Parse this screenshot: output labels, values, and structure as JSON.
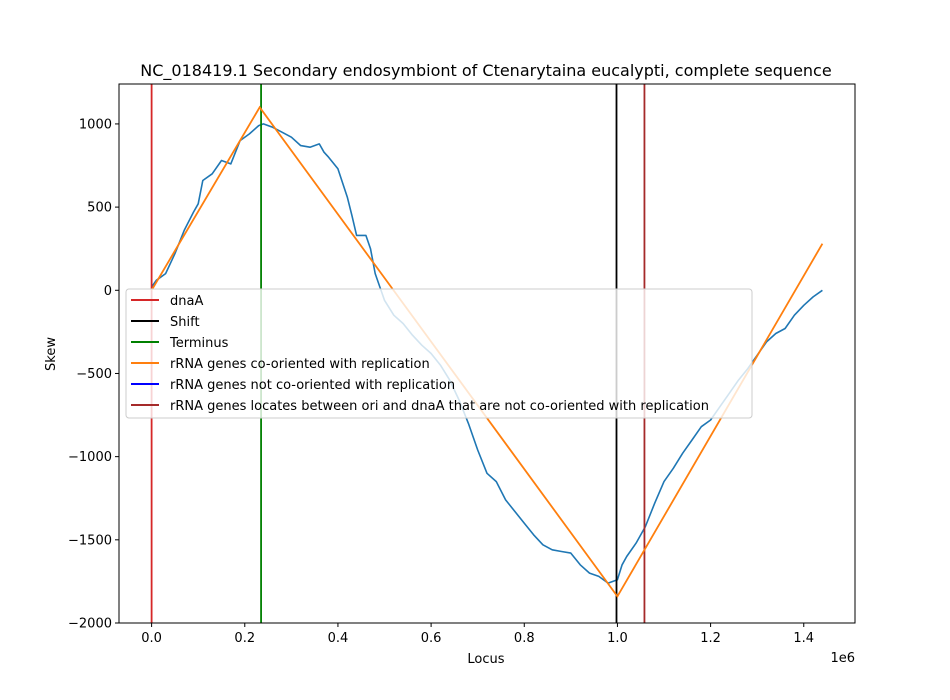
{
  "chart_data": {
    "type": "line",
    "title": "NC_018419.1 Secondary endosymbiont of Ctenarytaina eucalypti, complete sequence",
    "xlabel": "Locus",
    "ylabel": "Skew",
    "x_offset_label": "1e6",
    "xlim": [
      -0.07,
      1.51
    ],
    "ylim": [
      -2000,
      1240
    ],
    "x_ticks": [
      0.0,
      0.2,
      0.4,
      0.6,
      0.8,
      1.0,
      1.2,
      1.4
    ],
    "x_tick_labels": [
      "0.0",
      "0.2",
      "0.4",
      "0.6",
      "0.8",
      "1.0",
      "1.2",
      "1.4"
    ],
    "y_ticks": [
      1000,
      500,
      0,
      -500,
      -1000,
      -1500,
      -2000
    ],
    "y_tick_labels": [
      "1000",
      "500",
      "0",
      "−500",
      "−1000",
      "−1500",
      "−2000"
    ],
    "grid": false,
    "legend_placement": "center-left",
    "skew_series": {
      "color": "#1f77b4",
      "x": [
        0.0,
        0.01,
        0.03,
        0.05,
        0.07,
        0.09,
        0.1,
        0.11,
        0.13,
        0.15,
        0.17,
        0.19,
        0.21,
        0.23,
        0.24,
        0.26,
        0.28,
        0.3,
        0.32,
        0.34,
        0.36,
        0.37,
        0.38,
        0.4,
        0.42,
        0.43,
        0.44,
        0.46,
        0.47,
        0.48,
        0.5,
        0.52,
        0.54,
        0.56,
        0.58,
        0.6,
        0.62,
        0.64,
        0.66,
        0.68,
        0.7,
        0.72,
        0.74,
        0.76,
        0.78,
        0.8,
        0.82,
        0.84,
        0.86,
        0.88,
        0.9,
        0.92,
        0.94,
        0.96,
        0.98,
        1.0,
        1.01,
        1.02,
        1.04,
        1.06,
        1.08,
        1.1,
        1.12,
        1.14,
        1.16,
        1.18,
        1.2,
        1.22,
        1.24,
        1.26,
        1.28,
        1.3,
        1.32,
        1.34,
        1.36,
        1.38,
        1.4,
        1.42,
        1.44
      ],
      "y": [
        20,
        60,
        100,
        220,
        360,
        470,
        520,
        660,
        700,
        780,
        760,
        900,
        940,
        990,
        1000,
        980,
        950,
        920,
        870,
        860,
        880,
        830,
        800,
        730,
        560,
        450,
        330,
        330,
        250,
        100,
        -60,
        -150,
        -200,
        -270,
        -330,
        -380,
        -450,
        -540,
        -660,
        -800,
        -960,
        -1100,
        -1150,
        -1260,
        -1330,
        -1400,
        -1470,
        -1530,
        -1560,
        -1570,
        -1580,
        -1650,
        -1700,
        -1720,
        -1760,
        -1740,
        -1650,
        -1600,
        -1520,
        -1420,
        -1280,
        -1150,
        -1070,
        -980,
        -900,
        -820,
        -780,
        -700,
        -620,
        -540,
        -470,
        -390,
        -310,
        -260,
        -230,
        -150,
        -90,
        -40,
        0
      ]
    },
    "verticals": [
      {
        "name": "dnaA",
        "x": 0.0,
        "color": "#d62728"
      },
      {
        "name": "Terminus",
        "x": 0.235,
        "color": "#008000"
      },
      {
        "name": "Shift",
        "x": 0.998,
        "color": "#000000"
      },
      {
        "name": "rRNA genes locates between ori and dnaA that are not co-oriented with replication",
        "x": 1.058,
        "color": "#a52a2a"
      }
    ],
    "fit_series": {
      "name": "rRNA genes co-oriented with replication",
      "color": "#ff7f0e",
      "x": [
        0.0,
        0.232,
        1.0,
        1.44
      ],
      "y": [
        0,
        1100,
        -1840,
        280
      ]
    },
    "legend": [
      {
        "label": "dnaA",
        "color": "#d62728"
      },
      {
        "label": "Shift",
        "color": "#000000"
      },
      {
        "label": "Terminus",
        "color": "#008000"
      },
      {
        "label": "rRNA genes co-oriented with replication",
        "color": "#ff7f0e"
      },
      {
        "label": "rRNA genes not co-oriented with replication",
        "color": "#0000ff"
      },
      {
        "label": "rRNA genes locates between ori and dnaA that are not co-oriented with replication",
        "color": "#a52a2a"
      }
    ]
  }
}
